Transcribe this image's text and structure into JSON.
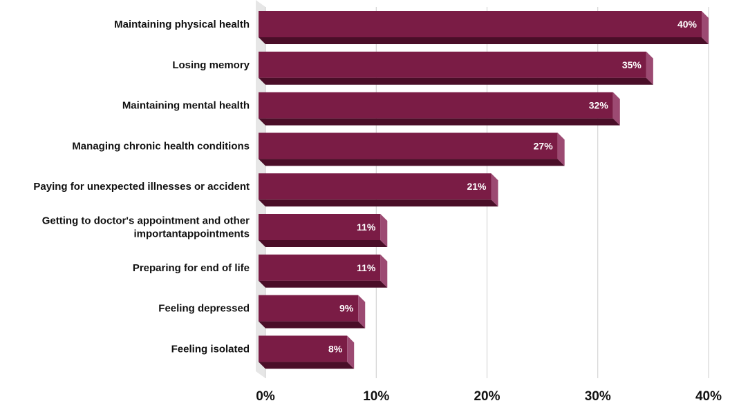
{
  "chart_data": {
    "type": "bar",
    "orientation": "horizontal",
    "title": "",
    "xlabel": "",
    "ylabel": "",
    "categories": [
      [
        "Maintaining physical health"
      ],
      [
        "Losing memory"
      ],
      [
        "Maintaining mental health"
      ],
      [
        "Managing chronic health conditions"
      ],
      [
        "Paying for unexpected illnesses or accident"
      ],
      [
        "Getting to doctor's appointment and other",
        "importantappointments"
      ],
      [
        "Preparing for end of life"
      ],
      [
        "Feeling depressed"
      ],
      [
        "Feeling isolated"
      ]
    ],
    "values": [
      40,
      35,
      32,
      27,
      21,
      11,
      11,
      9,
      8
    ],
    "data_labels": [
      "40%",
      "35%",
      "32%",
      "27%",
      "21%",
      "11%",
      "11%",
      "9%",
      "8%"
    ],
    "xlim": [
      0,
      40
    ],
    "xticks": [
      0,
      10,
      20,
      30,
      40
    ],
    "xtick_labels": [
      "0%",
      "10%",
      "20%",
      "30%",
      "40%"
    ],
    "grid": "vertical",
    "legend": "none",
    "style": "3d-bar"
  },
  "colors": {
    "bar_front": "#7a1c45",
    "bar_top": "#5a1232",
    "bar_side": "#9c4a72",
    "bar_bottom": "#4a0e28",
    "grid": "#cccccc",
    "wall": "#e6e6e6"
  }
}
